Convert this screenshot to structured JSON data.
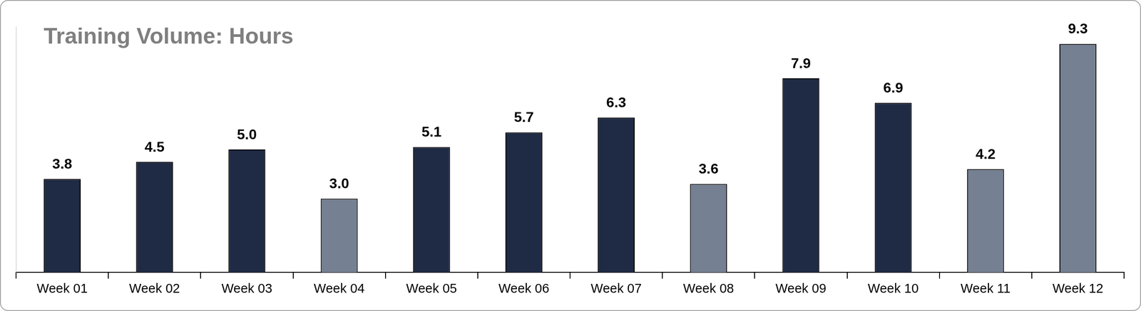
{
  "chart_data": {
    "type": "bar",
    "title": "Training Volume: Hours",
    "categories": [
      "Week 01",
      "Week 02",
      "Week 03",
      "Week 04",
      "Week 05",
      "Week 06",
      "Week 07",
      "Week 08",
      "Week 09",
      "Week 10",
      "Week 11",
      "Week 12"
    ],
    "values": [
      3.8,
      4.5,
      5.0,
      3.0,
      5.1,
      5.7,
      6.3,
      3.6,
      7.9,
      6.9,
      4.2,
      9.3
    ],
    "value_labels": [
      "3.8",
      "4.5",
      "5.0",
      "3.0",
      "5.1",
      "5.7",
      "6.3",
      "3.6",
      "7.9",
      "6.9",
      "4.2",
      "9.3"
    ],
    "colors": [
      "#1f2a44",
      "#1f2a44",
      "#1f2a44",
      "#758092",
      "#1f2a44",
      "#1f2a44",
      "#1f2a44",
      "#758092",
      "#1f2a44",
      "#1f2a44",
      "#758092",
      "#758092"
    ],
    "ylim": [
      0,
      10
    ],
    "yticks": [],
    "grid": false,
    "data_labels": true,
    "tick_labels": "x"
  }
}
